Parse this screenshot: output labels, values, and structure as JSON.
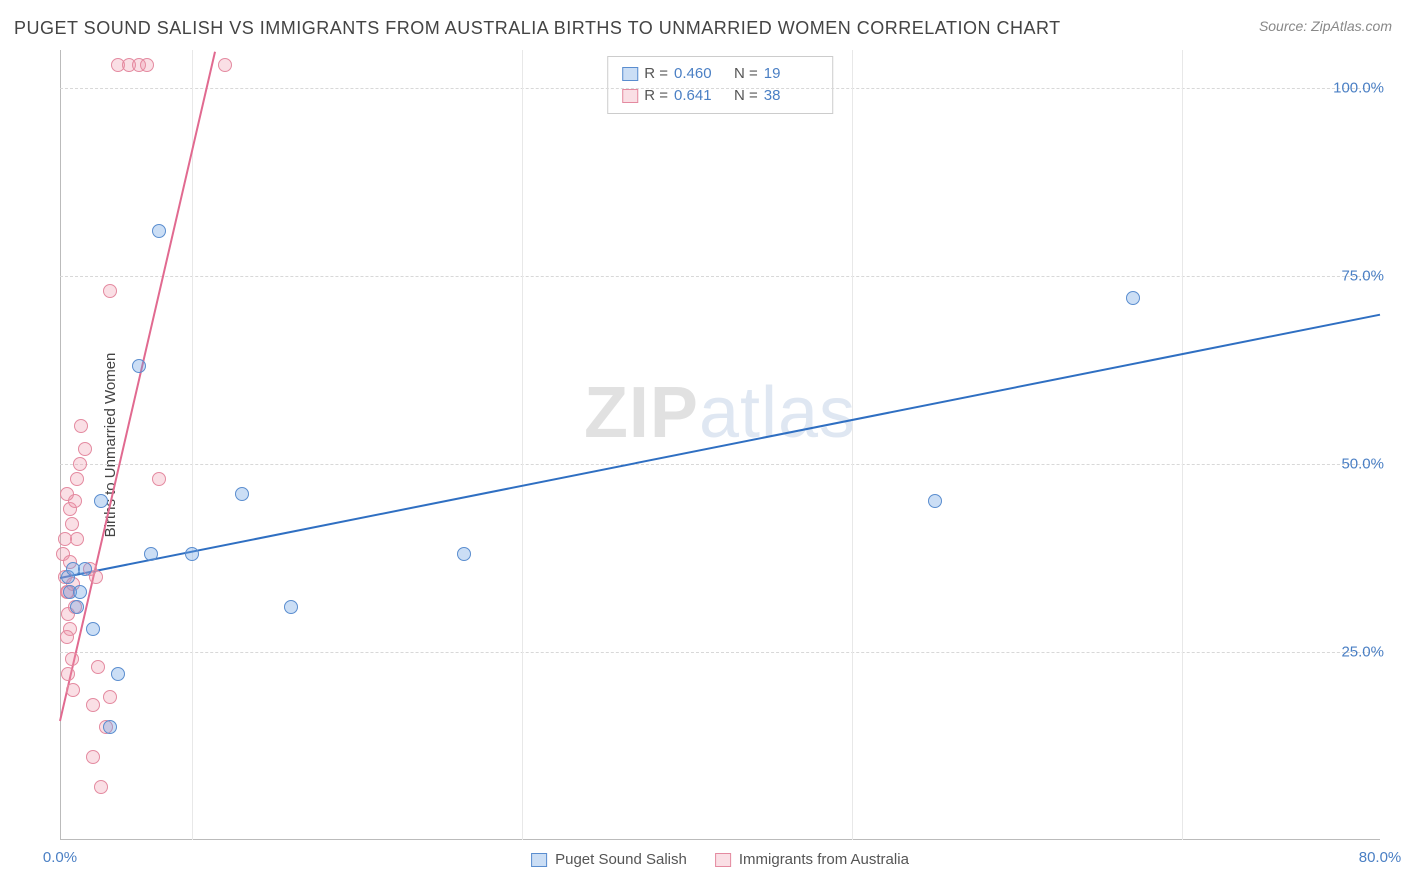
{
  "title": "PUGET SOUND SALISH VS IMMIGRANTS FROM AUSTRALIA BIRTHS TO UNMARRIED WOMEN CORRELATION CHART",
  "source_label": "Source: ZipAtlas.com",
  "y_axis_label": "Births to Unmarried Women",
  "watermark_a": "ZIP",
  "watermark_b": "atlas",
  "chart": {
    "type": "scatter",
    "xlim": [
      0,
      80
    ],
    "ylim": [
      0,
      105
    ],
    "x_ticks": [
      0,
      80
    ],
    "x_tick_labels": [
      "0.0%",
      "80.0%"
    ],
    "x_minor_ticks": [
      8,
      28,
      48,
      68
    ],
    "y_ticks": [
      25,
      50,
      75,
      100
    ],
    "y_tick_labels": [
      "25.0%",
      "50.0%",
      "75.0%",
      "100.0%"
    ],
    "background_color": "#ffffff",
    "grid_color": "#d8d8d8",
    "axis_color": "#bbbbbb",
    "tick_font_color": "#4a7fc4",
    "label_font_color": "#444444",
    "title_font_color": "#444444",
    "title_fontsize": 18,
    "tick_fontsize": 15,
    "label_fontsize": 15,
    "marker_radius": 7,
    "marker_opacity": 0.35,
    "line_width": 2
  },
  "series": {
    "blue": {
      "label": "Puget Sound Salish",
      "R": "0.460",
      "N": "19",
      "fill": "rgba(105,160,225,0.35)",
      "stroke": "#5a8dcf",
      "line_color": "#2f6fc2",
      "trend": {
        "x1": 0,
        "y1": 35,
        "x2": 80,
        "y2": 70
      },
      "points": [
        [
          0.5,
          35
        ],
        [
          0.6,
          33
        ],
        [
          0.8,
          36
        ],
        [
          1.0,
          31
        ],
        [
          1.2,
          33
        ],
        [
          2.0,
          28
        ],
        [
          1.5,
          36
        ],
        [
          2.5,
          45
        ],
        [
          3.5,
          22
        ],
        [
          3.0,
          15
        ],
        [
          5.5,
          38
        ],
        [
          6.0,
          81
        ],
        [
          8.0,
          38
        ],
        [
          11.0,
          46
        ],
        [
          14.0,
          31
        ],
        [
          24.5,
          38
        ],
        [
          53.0,
          45
        ],
        [
          65.0,
          72
        ],
        [
          4.8,
          63
        ]
      ]
    },
    "pink": {
      "label": "Immigants from Australia",
      "legend_label": "Immigrants from Australia",
      "R": "0.641",
      "N": "38",
      "fill": "rgba(240,150,170,0.30)",
      "stroke": "#e48aa0",
      "line_color": "#e16a90",
      "trend": {
        "x1": 0,
        "y1": 16,
        "x2": 9.4,
        "y2": 105
      },
      "points": [
        [
          0.3,
          35
        ],
        [
          0.4,
          33
        ],
        [
          0.5,
          30
        ],
        [
          0.6,
          28
        ],
        [
          0.4,
          27
        ],
        [
          0.7,
          24
        ],
        [
          0.5,
          22
        ],
        [
          0.8,
          20
        ],
        [
          0.6,
          44
        ],
        [
          0.7,
          42
        ],
        [
          0.9,
          45
        ],
        [
          1.0,
          40
        ],
        [
          1.2,
          50
        ],
        [
          1.0,
          48
        ],
        [
          1.5,
          52
        ],
        [
          1.3,
          55
        ],
        [
          2.0,
          18
        ],
        [
          2.3,
          23
        ],
        [
          2.5,
          7
        ],
        [
          2.0,
          11
        ],
        [
          2.8,
          15
        ],
        [
          3.0,
          19
        ],
        [
          2.2,
          35
        ],
        [
          1.8,
          36
        ],
        [
          3.0,
          73
        ],
        [
          6.0,
          48
        ],
        [
          3.5,
          103
        ],
        [
          4.2,
          103
        ],
        [
          4.8,
          103
        ],
        [
          5.3,
          103
        ],
        [
          10.0,
          103
        ],
        [
          0.2,
          38
        ],
        [
          0.3,
          40
        ],
        [
          0.4,
          46
        ],
        [
          0.5,
          33
        ],
        [
          0.8,
          34
        ],
        [
          0.6,
          37
        ],
        [
          0.9,
          31
        ]
      ]
    }
  },
  "legend_top": {
    "r_label": "R =",
    "n_label": "N ="
  }
}
